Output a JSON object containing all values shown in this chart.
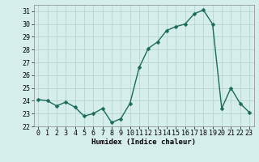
{
  "x": [
    0,
    1,
    2,
    3,
    4,
    5,
    6,
    7,
    8,
    9,
    10,
    11,
    12,
    13,
    14,
    15,
    16,
    17,
    18,
    19,
    20,
    21,
    22,
    23
  ],
  "y": [
    24.1,
    24.0,
    23.6,
    23.9,
    23.5,
    22.8,
    23.0,
    23.4,
    22.3,
    22.6,
    23.8,
    26.6,
    28.1,
    28.6,
    29.5,
    29.8,
    30.0,
    30.8,
    31.1,
    30.0,
    23.4,
    25.0,
    23.8,
    23.1
  ],
  "line_color": "#1a6b5a",
  "marker": "D",
  "marker_size": 2.5,
  "linewidth": 1.0,
  "bg_color": "#d5eeeb",
  "grid_color": "#b5d5d0",
  "xlabel": "Humidex (Indice chaleur)",
  "xlim": [
    -0.5,
    23.5
  ],
  "ylim": [
    22,
    31.5
  ],
  "yticks": [
    22,
    23,
    24,
    25,
    26,
    27,
    28,
    29,
    30,
    31
  ],
  "xticks": [
    0,
    1,
    2,
    3,
    4,
    5,
    6,
    7,
    8,
    9,
    10,
    11,
    12,
    13,
    14,
    15,
    16,
    17,
    18,
    19,
    20,
    21,
    22,
    23
  ],
  "xlabel_fontsize": 6.5,
  "tick_fontsize": 6.0,
  "font_family": "monospace"
}
